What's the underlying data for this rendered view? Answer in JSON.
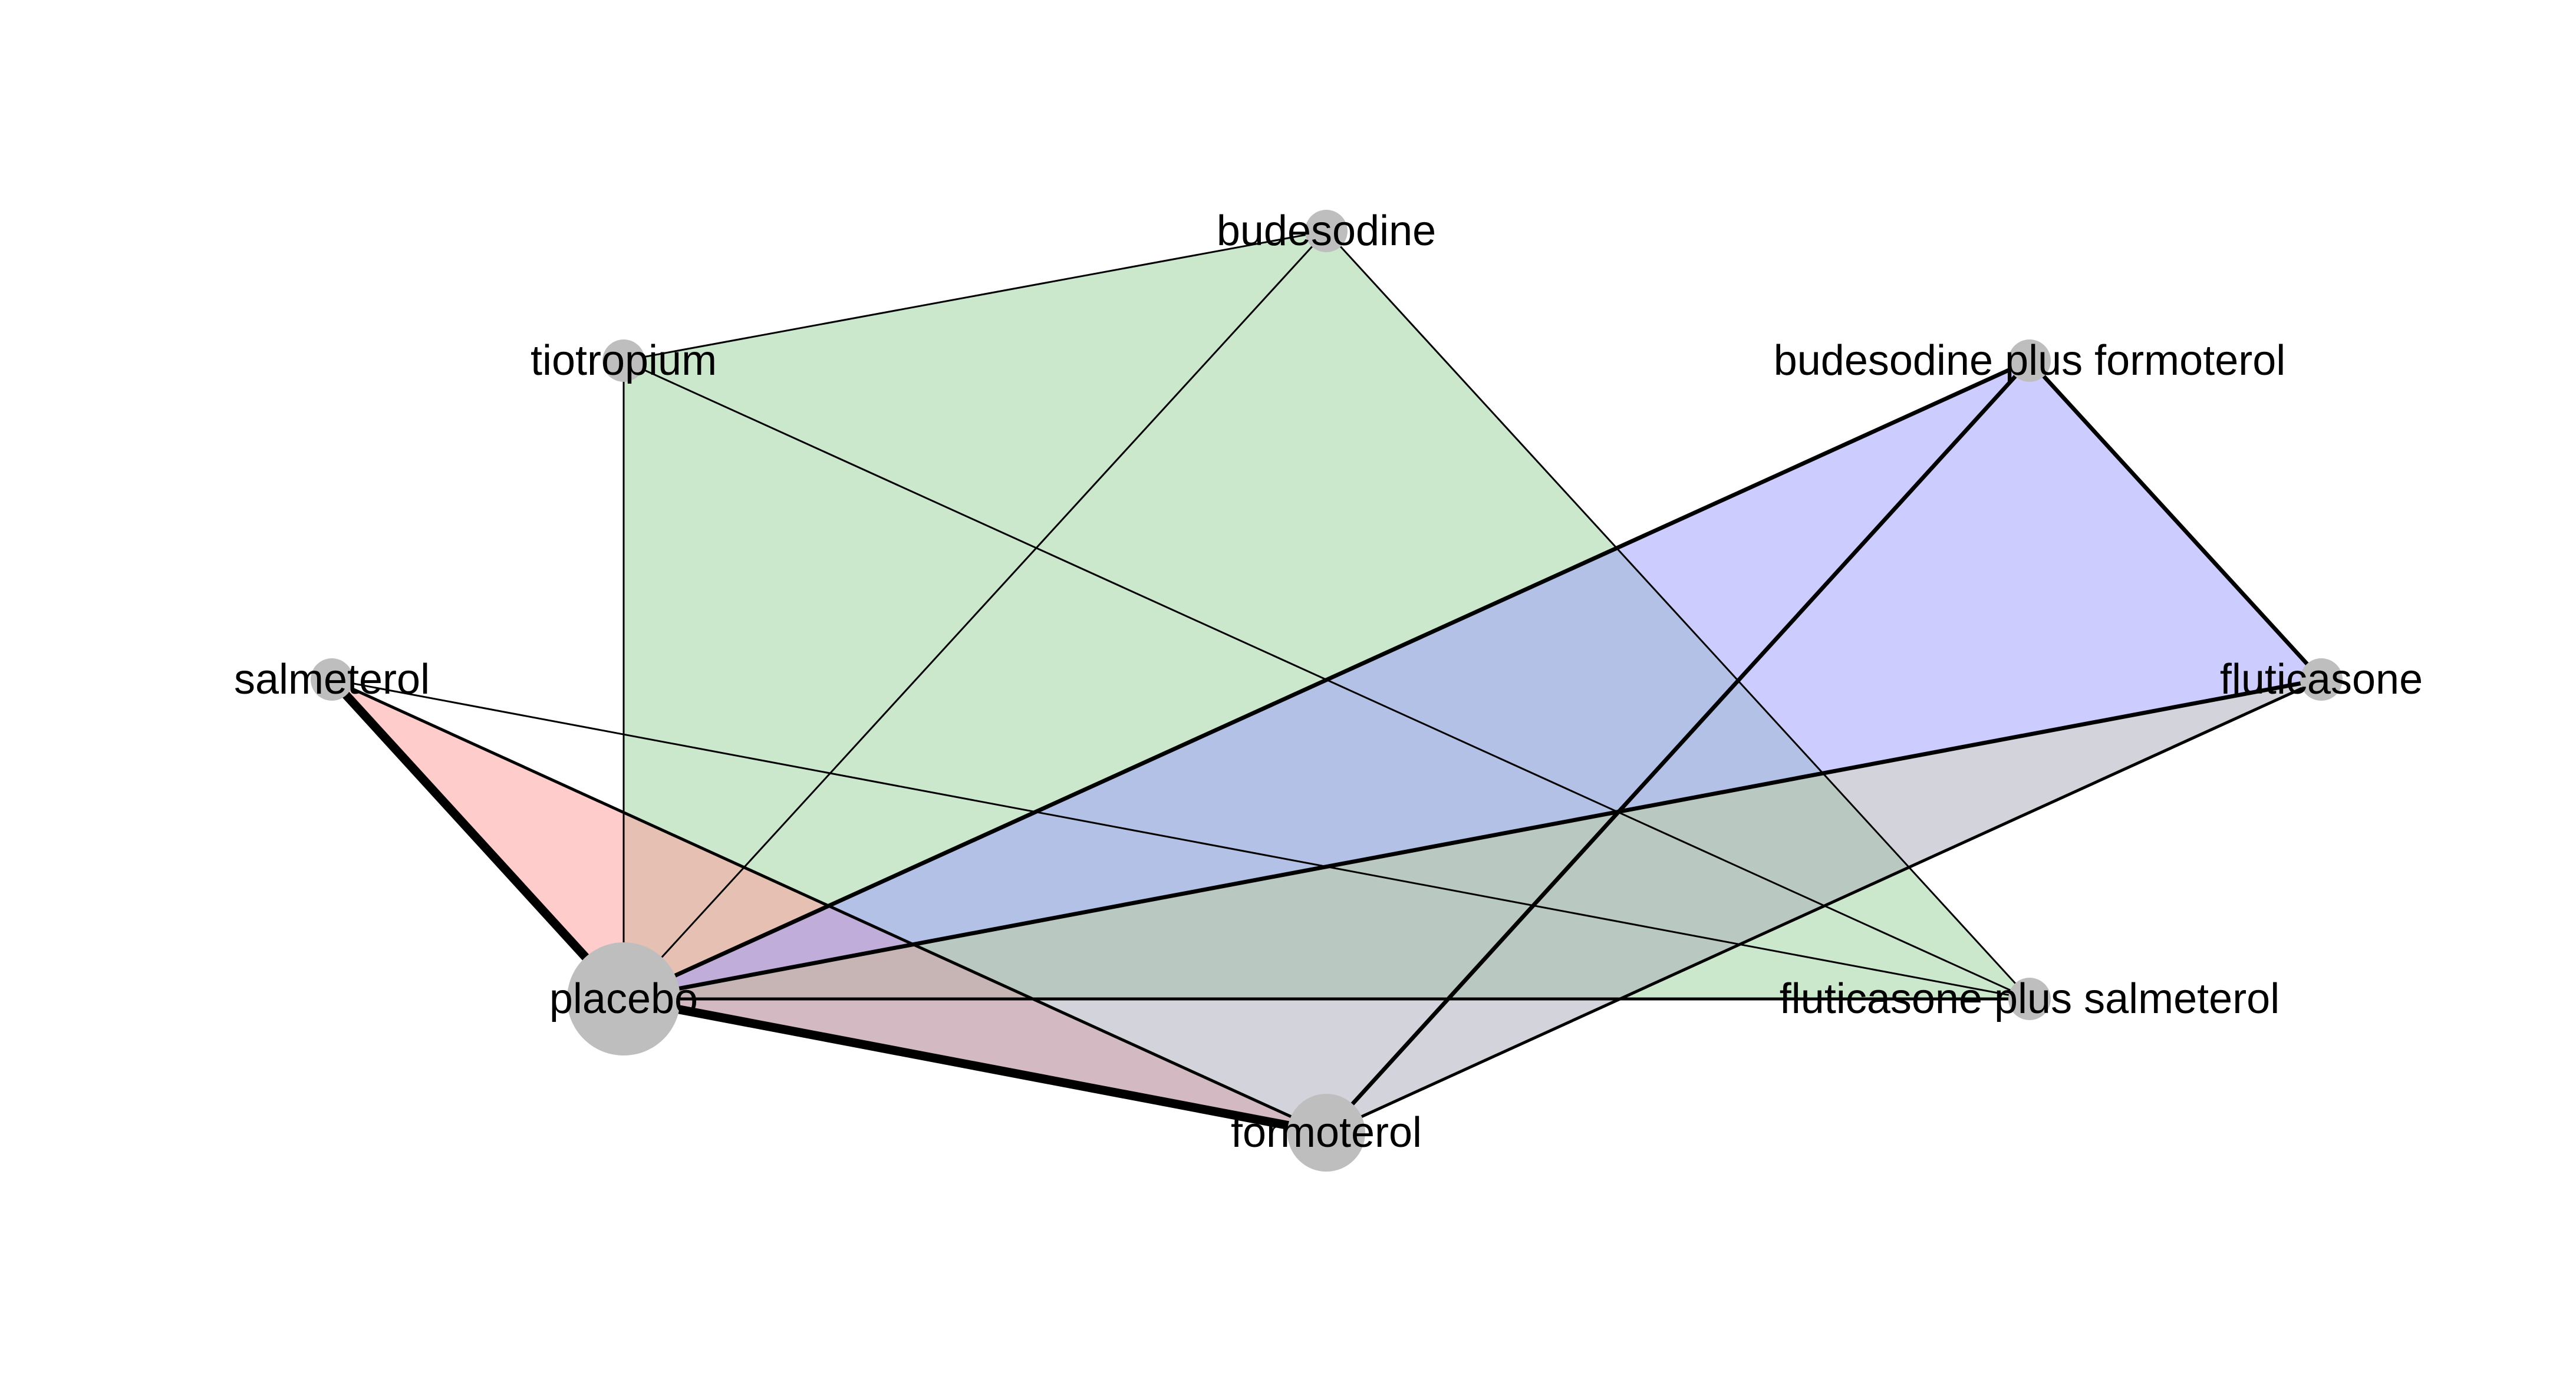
{
  "diagram": {
    "type": "network-meta-analysis-graph",
    "nodes": [
      {
        "id": "budesodine",
        "label": "budesodine",
        "size": "small"
      },
      {
        "id": "tiotropium",
        "label": "tiotropium",
        "size": "small"
      },
      {
        "id": "budesodine_plus_formoterol",
        "label": "budesodine plus formoterol",
        "size": "small"
      },
      {
        "id": "salmeterol",
        "label": "salmeterol",
        "size": "small"
      },
      {
        "id": "fluticasone",
        "label": "fluticasone",
        "size": "small"
      },
      {
        "id": "placebo",
        "label": "placebo",
        "size": "large"
      },
      {
        "id": "fluticasone_plus_salmeterol",
        "label": "fluticasone plus salmeterol",
        "size": "small"
      },
      {
        "id": "formoterol",
        "label": "formoterol",
        "size": "medium"
      }
    ],
    "edges": [
      {
        "from": "salmeterol",
        "to": "placebo",
        "weight": "heavy"
      },
      {
        "from": "placebo",
        "to": "formoterol",
        "weight": "heavy"
      },
      {
        "from": "placebo",
        "to": "fluticasone",
        "weight": "medium"
      },
      {
        "from": "placebo",
        "to": "budesodine_plus_formoterol",
        "weight": "medium"
      },
      {
        "from": "budesodine_plus_formoterol",
        "to": "fluticasone",
        "weight": "medium"
      },
      {
        "from": "budesodine_plus_formoterol",
        "to": "formoterol",
        "weight": "medium"
      },
      {
        "from": "formoterol",
        "to": "fluticasone",
        "weight": "light"
      },
      {
        "from": "placebo",
        "to": "fluticasone_plus_salmeterol",
        "weight": "light"
      },
      {
        "from": "salmeterol",
        "to": "formoterol",
        "weight": "light"
      },
      {
        "from": "salmeterol",
        "to": "fluticasone_plus_salmeterol",
        "weight": "thin"
      },
      {
        "from": "tiotropium",
        "to": "placebo",
        "weight": "thin"
      },
      {
        "from": "tiotropium",
        "to": "budesodine",
        "weight": "thin"
      },
      {
        "from": "tiotropium",
        "to": "fluticasone_plus_salmeterol",
        "weight": "thin"
      },
      {
        "from": "budesodine",
        "to": "placebo",
        "weight": "thin"
      },
      {
        "from": "budesodine",
        "to": "fluticasone_plus_salmeterol",
        "weight": "thin"
      }
    ],
    "multi_arm_regions": [
      {
        "members": [
          "tiotropium",
          "budesodine",
          "fluticasone_plus_salmeterol",
          "placebo"
        ],
        "color": "#99D299"
      },
      {
        "members": [
          "salmeterol",
          "formoterol",
          "placebo"
        ],
        "color": "#FF9999"
      },
      {
        "members": [
          "budesodine_plus_formoterol",
          "fluticasone",
          "placebo"
        ],
        "color": "#9999FF"
      },
      {
        "members": [
          "fluticasone",
          "formoterol",
          "placebo"
        ],
        "color": "#A8A8B8"
      }
    ],
    "node_color": "#BEBEBE",
    "edge_color": "#000000"
  }
}
